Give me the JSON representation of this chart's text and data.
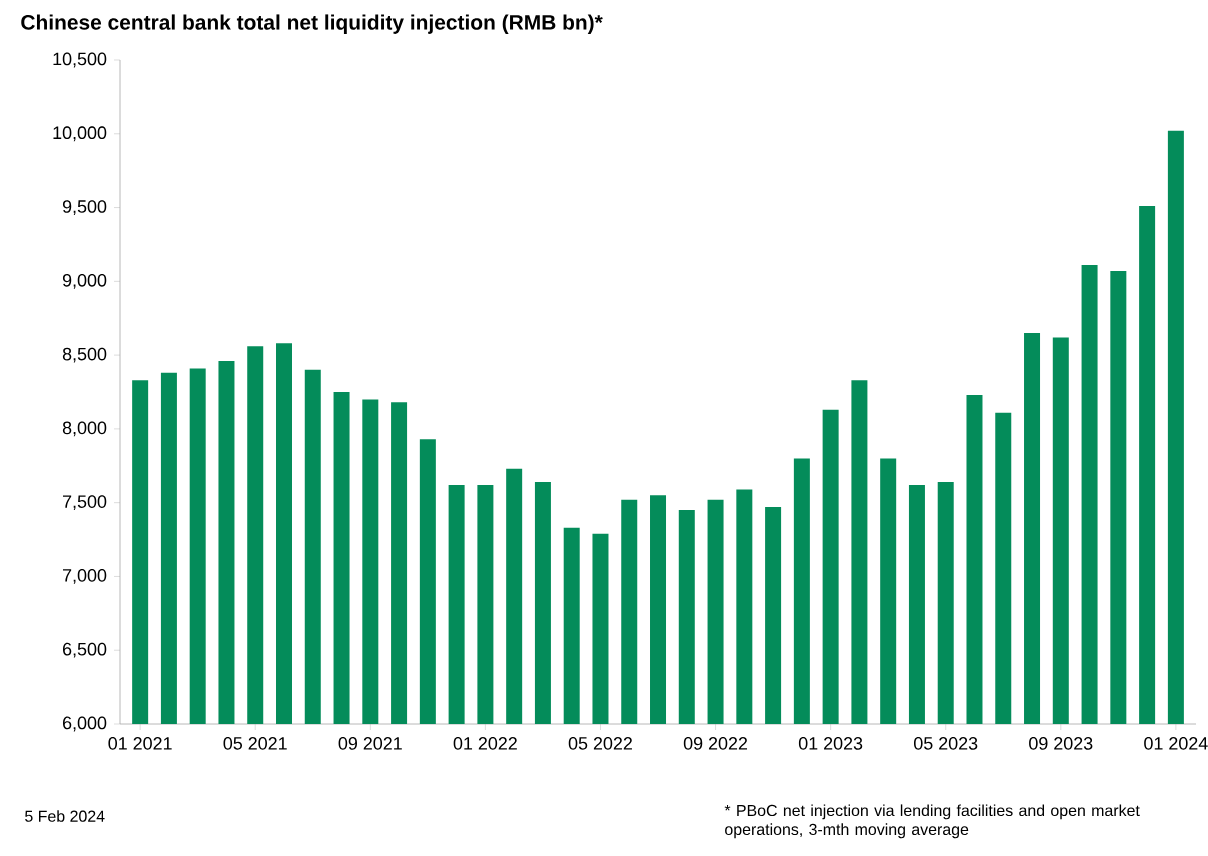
{
  "chart_data": {
    "type": "bar",
    "title": "Chinese central bank total net liquidity injection (RMB bn)*",
    "categories": [
      "01 2021",
      null,
      null,
      null,
      "05 2021",
      null,
      null,
      null,
      "09 2021",
      null,
      null,
      null,
      "01 2022",
      null,
      null,
      null,
      "05 2022",
      null,
      null,
      null,
      "09 2022",
      null,
      null,
      null,
      "01 2023",
      null,
      null,
      null,
      "05 2023",
      null,
      null,
      null,
      "09 2023",
      null,
      null,
      null,
      "01 2024"
    ],
    "values": [
      8330,
      8380,
      8410,
      8460,
      8560,
      8580,
      8400,
      8250,
      8200,
      8180,
      7930,
      7620,
      7620,
      7730,
      7640,
      7330,
      7290,
      7520,
      7550,
      7450,
      7520,
      7590,
      7470,
      7800,
      8130,
      8330,
      7800,
      7620,
      7640,
      8230,
      8110,
      8650,
      8620,
      9110,
      9070,
      9510,
      10020
    ],
    "color": "#048c5a",
    "ylim": [
      6000,
      10500
    ],
    "yticks": [
      {
        "value": 6000,
        "label": "6,000"
      },
      {
        "value": 6500,
        "label": "6,500"
      },
      {
        "value": 7000,
        "label": "7,000"
      },
      {
        "value": 7500,
        "label": "7,500"
      },
      {
        "value": 8000,
        "label": "8,000"
      },
      {
        "value": 8500,
        "label": "8,500"
      },
      {
        "value": 9000,
        "label": "9,000"
      },
      {
        "value": 9500,
        "label": "9,500"
      },
      {
        "value": 10000,
        "label": "10,000"
      },
      {
        "value": 10500,
        "label": "10,500"
      }
    ],
    "annotations": [
      "5 Feb 2024",
      "* PBoC net injection via lending facilities and open market operations, 3-mth moving average"
    ]
  }
}
